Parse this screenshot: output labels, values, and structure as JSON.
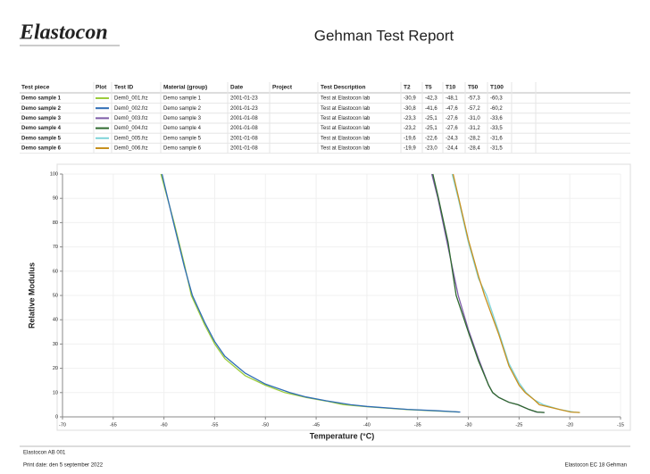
{
  "header": {
    "logo": "Elastocon",
    "title": "Gehman Test Report"
  },
  "table": {
    "columns": [
      "Test piece",
      "Plot",
      "Test ID",
      "Material (group)",
      "Date",
      "Project",
      "Test Description",
      "T2",
      "T5",
      "T10",
      "T50",
      "T100"
    ],
    "rows": [
      {
        "test_piece": "Demo sample 1",
        "test_id": "Dem0_001.frz",
        "material": "Demo sample 1",
        "date": "2001-01-23",
        "description": "Test at Elastocon lab",
        "t2": "-30,9",
        "t5": "-42,3",
        "t10": "-48,1",
        "t50": "-57,3",
        "t100": "-60,3"
      },
      {
        "test_piece": "Demo sample 2",
        "test_id": "Dem0_002.frz",
        "material": "Demo sample 2",
        "date": "2001-01-23",
        "description": "Test at Elastocon lab",
        "t2": "-30,8",
        "t5": "-41,6",
        "t10": "-47,6",
        "t50": "-57,2",
        "t100": "-60,2"
      },
      {
        "test_piece": "Demo sample 3",
        "test_id": "Dem0_003.frz",
        "material": "Demo sample 3",
        "date": "2001-01-08",
        "description": "Test at Elastocon lab",
        "t2": "-23,3",
        "t5": "-25,1",
        "t10": "-27,6",
        "t50": "-31,0",
        "t100": "-33,6"
      },
      {
        "test_piece": "Demo sample 4",
        "test_id": "Dem0_004.frz",
        "material": "Demo sample 4",
        "date": "2001-01-08",
        "description": "Test at Elastocon lab",
        "t2": "-23,2",
        "t5": "-25,1",
        "t10": "-27,6",
        "t50": "-31,2",
        "t100": "-33,5"
      },
      {
        "test_piece": "Demo sample 5",
        "test_id": "Dem0_005.frz",
        "material": "Demo sample 5",
        "date": "2001-01-08",
        "description": "Test at Elastocon lab",
        "t2": "-19,6",
        "t5": "-22,6",
        "t10": "-24,3",
        "t50": "-28,2",
        "t100": "-31,6"
      },
      {
        "test_piece": "Demo sample 6",
        "test_id": "Dem0_006.frz",
        "material": "Demo sample 6",
        "date": "2001-01-08",
        "description": "Test at Elastocon lab",
        "t2": "-19,9",
        "t5": "-23,0",
        "t10": "-24,4",
        "t50": "-28,4",
        "t100": "-31,5"
      }
    ]
  },
  "chart_data": {
    "type": "line",
    "x_label": "Temperature (°C)",
    "y_label": "Relative Modulus",
    "xlim": [
      -70,
      -15
    ],
    "xticks": [
      -70,
      -65,
      -60,
      -55,
      -50,
      -45,
      -40,
      -35,
      -30,
      -25,
      -20,
      -15
    ],
    "ylim": [
      0,
      100
    ],
    "yticks": [
      0,
      10,
      20,
      30,
      40,
      50,
      60,
      70,
      80,
      90,
      100
    ],
    "grid": true,
    "series": [
      {
        "name": "Demo sample 1",
        "color": "#9ccc3c",
        "x": [
          -60.3,
          -59,
          -58,
          -57.3,
          -56,
          -55,
          -54,
          -52,
          -50,
          -48.1,
          -46,
          -44,
          -42.3,
          -40,
          -36,
          -33,
          -30.9
        ],
        "values": [
          100,
          80,
          63,
          50,
          38,
          30,
          24,
          17,
          13,
          10,
          8,
          6.5,
          5,
          4.2,
          3,
          2.4,
          2
        ]
      },
      {
        "name": "Demo sample 2",
        "color": "#2f6db5",
        "x": [
          -60.2,
          -59,
          -58,
          -57.2,
          -56,
          -55,
          -54,
          -52,
          -50,
          -47.6,
          -46,
          -44,
          -41.6,
          -40,
          -36,
          -33,
          -30.8
        ],
        "values": [
          100,
          79,
          62,
          50,
          39,
          31,
          25,
          18,
          13.5,
          10,
          8.2,
          6.6,
          5,
          4.3,
          3.1,
          2.5,
          2
        ]
      },
      {
        "name": "Demo sample 3",
        "color": "#7d5ca8",
        "x": [
          -33.6,
          -33,
          -32,
          -31,
          -30,
          -29,
          -28,
          -27.6,
          -27,
          -26,
          -25.1,
          -24,
          -23.3,
          -22.5
        ],
        "values": [
          100,
          90,
          70,
          50,
          36,
          24,
          13,
          10,
          8,
          6,
          5,
          3,
          2,
          1.8
        ]
      },
      {
        "name": "Demo sample 4",
        "color": "#2f6a2f",
        "x": [
          -33.5,
          -33,
          -32,
          -31.2,
          -30,
          -29,
          -28,
          -27.6,
          -27,
          -26,
          -25.1,
          -24,
          -23.2,
          -22.5
        ],
        "values": [
          100,
          91,
          72,
          50,
          35,
          23,
          13,
          10,
          8,
          6,
          5,
          3,
          2,
          1.8
        ]
      },
      {
        "name": "Demo sample 5",
        "color": "#7fd4d8",
        "x": [
          -31.6,
          -31,
          -30,
          -29,
          -28.2,
          -27,
          -26,
          -25,
          -24.3,
          -23.5,
          -22.6,
          -21,
          -19.6,
          -19
        ],
        "values": [
          100,
          90,
          72,
          57,
          50,
          35,
          22,
          14,
          10,
          7,
          5,
          3,
          2,
          1.8
        ]
      },
      {
        "name": "Demo sample 6",
        "color": "#c8901e",
        "x": [
          -31.5,
          -31,
          -30,
          -29,
          -28.4,
          -27,
          -26,
          -25,
          -24.4,
          -23.5,
          -23,
          -21,
          -19.9,
          -19
        ],
        "values": [
          100,
          91,
          73,
          58,
          50,
          34,
          21,
          13,
          10,
          7,
          5,
          3,
          2,
          1.8
        ]
      }
    ]
  },
  "footer": {
    "company": "Elastocon AB 001",
    "print_date": "Print date: den 5 september 2022",
    "product": "Elastocon EC 18 Gehman"
  }
}
